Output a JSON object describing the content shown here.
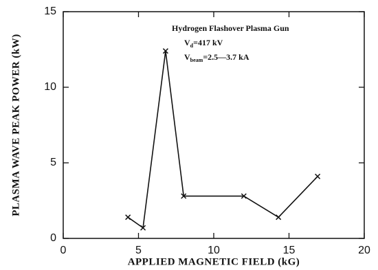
{
  "chart_data": {
    "type": "line",
    "x_label": "APPLIED MAGNETIC FIELD (kG)",
    "y_label": "PLASMA WAVE PEAK POWER (kW)",
    "annotations": [
      {
        "text": "Hydrogen Flashover Plasma Gun"
      },
      {
        "text": "V",
        "sub": "d",
        "rest": "=417 kV"
      },
      {
        "text": "V",
        "sub": "beam",
        "rest": "=2.5—3.7 kA"
      }
    ],
    "x": [
      4.3,
      5.3,
      6.8,
      8.0,
      12.0,
      14.3,
      16.9
    ],
    "series": [
      {
        "color": "#111111",
        "values": [
          1.4,
          0.7,
          12.4,
          2.8,
          2.8,
          1.4,
          4.1
        ]
      }
    ],
    "xlim": [
      0,
      20
    ],
    "xticks": [
      0,
      5,
      10,
      15,
      20
    ],
    "ylim": [
      0,
      15
    ],
    "yticks": [
      0,
      5,
      10,
      15
    ]
  }
}
